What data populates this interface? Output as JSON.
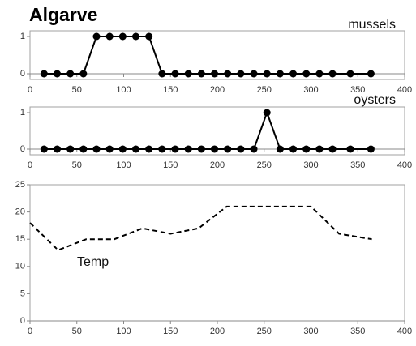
{
  "title": "Algarve",
  "chart_data": [
    {
      "type": "line",
      "x": [
        15,
        29,
        43,
        57,
        71,
        85,
        99,
        113,
        127,
        141,
        155,
        169,
        183,
        197,
        211,
        225,
        239,
        253,
        267,
        281,
        295,
        309,
        323,
        342,
        364
      ],
      "series": [
        {
          "name": "mussels",
          "color": "#000000",
          "values": [
            0,
            0,
            0,
            0,
            1,
            1,
            1,
            1,
            1,
            0,
            0,
            0,
            0,
            0,
            0,
            0,
            0,
            0,
            0,
            0,
            0,
            0,
            0,
            0,
            0
          ]
        }
      ],
      "markers": true,
      "dashed": false,
      "xlim": [
        0,
        400
      ],
      "xticks": [
        0,
        50,
        100,
        150,
        200,
        250,
        300,
        350,
        400
      ],
      "ylim": [
        0,
        1
      ],
      "yticks": [
        0,
        1
      ]
    },
    {
      "type": "line",
      "x": [
        15,
        29,
        43,
        57,
        71,
        85,
        99,
        113,
        127,
        141,
        155,
        169,
        183,
        197,
        211,
        225,
        239,
        253,
        267,
        281,
        295,
        309,
        323,
        342,
        364
      ],
      "series": [
        {
          "name": "oysters",
          "color": "#000000",
          "values": [
            0,
            0,
            0,
            0,
            0,
            0,
            0,
            0,
            0,
            0,
            0,
            0,
            0,
            0,
            0,
            0,
            0,
            1,
            0,
            0,
            0,
            0,
            0,
            0,
            0
          ]
        }
      ],
      "markers": true,
      "dashed": false,
      "xlim": [
        0,
        400
      ],
      "xticks": [
        0,
        50,
        100,
        150,
        200,
        250,
        300,
        350,
        400
      ],
      "ylim": [
        0,
        1
      ],
      "yticks": [
        0,
        1
      ]
    },
    {
      "type": "line",
      "x": [
        0,
        30,
        60,
        90,
        120,
        150,
        180,
        210,
        240,
        270,
        300,
        330,
        365
      ],
      "series": [
        {
          "name": "Temp",
          "color": "#000000",
          "values": [
            18,
            13,
            15,
            15,
            17,
            16,
            17,
            21,
            21,
            21,
            21,
            16,
            15
          ]
        }
      ],
      "markers": false,
      "dashed": true,
      "xlim": [
        0,
        400
      ],
      "xticks": [
        0,
        50,
        100,
        150,
        200,
        250,
        300,
        350,
        400
      ],
      "ylim": [
        0,
        25
      ],
      "yticks": [
        0,
        5,
        10,
        15,
        20,
        25
      ]
    }
  ]
}
